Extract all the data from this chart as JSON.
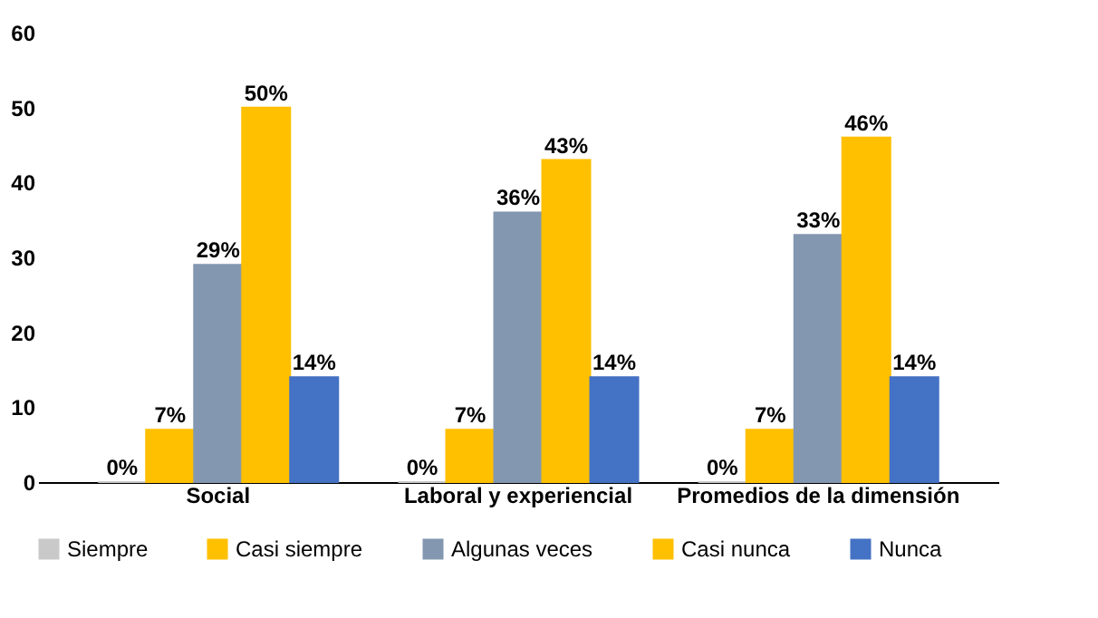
{
  "chart_data": {
    "type": "bar",
    "categories": [
      "Social",
      "Laboral y experiencial",
      "Promedios de la dimensión"
    ],
    "series": [
      {
        "name": "Siempre",
        "color": "#c9c9c9",
        "values": [
          0,
          0,
          0
        ],
        "value_labels": [
          "0%",
          "0%",
          "0%"
        ]
      },
      {
        "name": "Casi siempre",
        "color": "#ffc000",
        "values": [
          7,
          7,
          7
        ],
        "value_labels": [
          "7%",
          "7%",
          "7%"
        ]
      },
      {
        "name": "Algunas veces",
        "color": "#8497b0",
        "values": [
          29,
          36,
          33
        ],
        "value_labels": [
          "29%",
          "36%",
          "33%"
        ]
      },
      {
        "name": "Casi nunca",
        "color": "#ffc000",
        "values": [
          50,
          43,
          46
        ],
        "value_labels": [
          "50%",
          "43%",
          "46%"
        ]
      },
      {
        "name": "Nunca",
        "color": "#4472c4",
        "values": [
          14,
          14,
          14
        ],
        "value_labels": [
          "14%",
          "14%",
          "14%"
        ]
      }
    ],
    "ylim": [
      0,
      60
    ],
    "yticks": [
      0,
      10,
      20,
      30,
      40,
      50,
      60
    ],
    "grid": false,
    "legend": "bottom"
  }
}
